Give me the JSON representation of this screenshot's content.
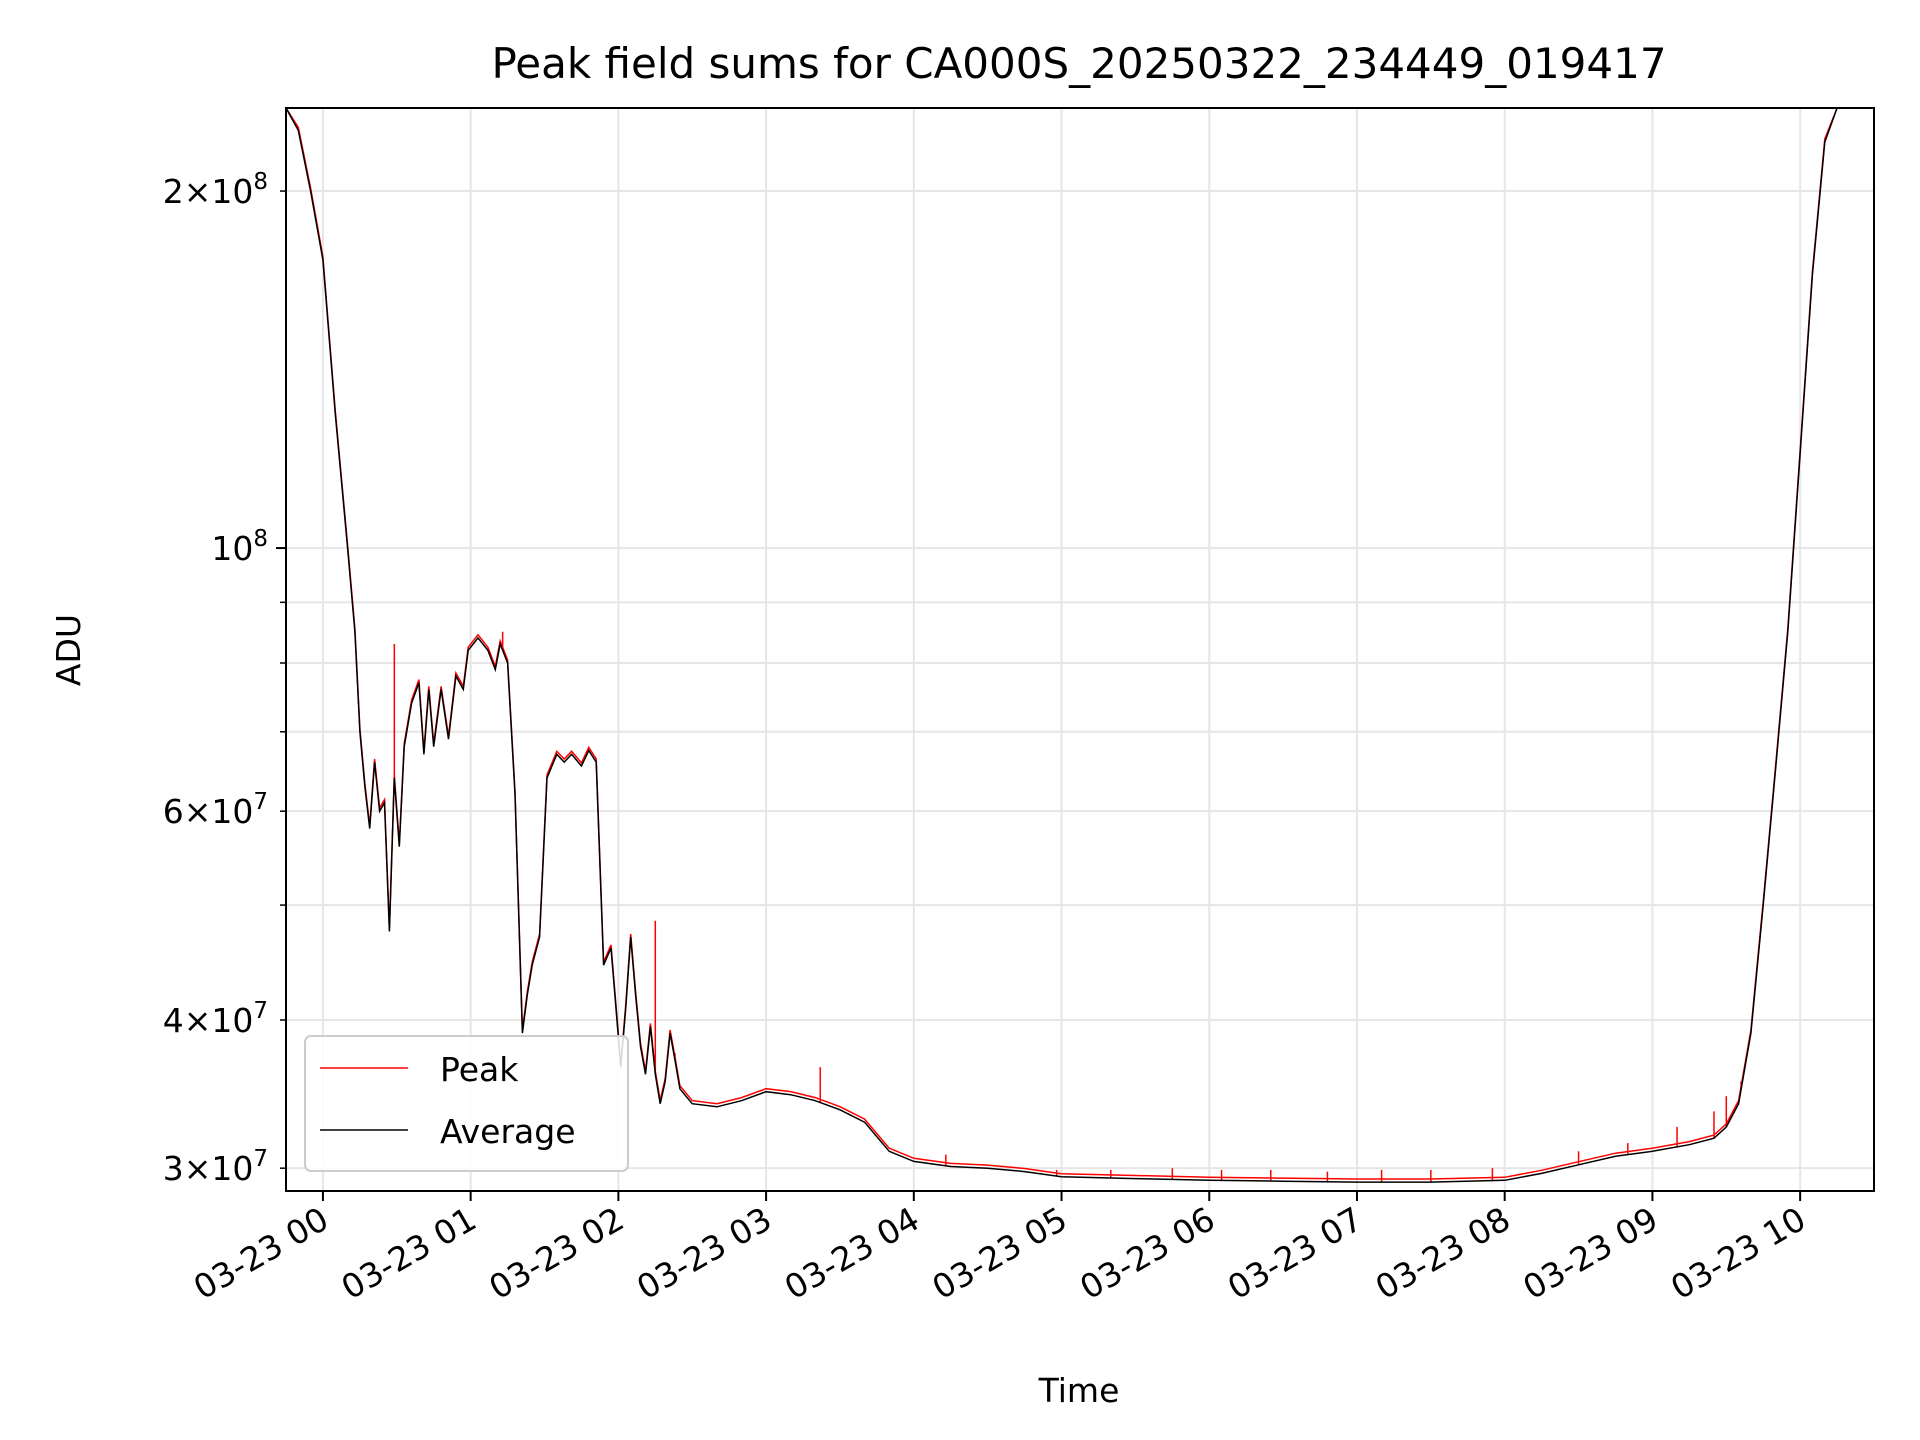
{
  "chart_data": {
    "type": "line",
    "title": "Peak field sums for CA000S_20250322_234449_019417",
    "xlabel": "Time",
    "ylabel": "ADU",
    "y_scale": "log",
    "x_range": [
      "03-22 23:45",
      "03-23 10:30"
    ],
    "ylim": [
      28700000,
      235000000
    ],
    "grid": true,
    "legend_position": "lower left",
    "x_ticks": [
      "03-23 00",
      "03-23 01",
      "03-23 02",
      "03-23 03",
      "03-23 04",
      "03-23 05",
      "03-23 06",
      "03-23 07",
      "03-23 08",
      "03-23 09",
      "03-23 10"
    ],
    "y_ticks_major": [
      {
        "value": 100000000,
        "base": "10",
        "exp": "8"
      }
    ],
    "y_ticks_labeled_minor": [
      {
        "value": 30000000,
        "mant": "3",
        "base": "10",
        "exp": "7"
      },
      {
        "value": 40000000,
        "mant": "4",
        "base": "10",
        "exp": "7"
      },
      {
        "value": 60000000,
        "mant": "6",
        "base": "10",
        "exp": "7"
      },
      {
        "value": 200000000,
        "mant": "2",
        "base": "10",
        "exp": "8"
      }
    ],
    "y_ticks_unlabeled_minor": [
      50000000,
      70000000,
      80000000,
      90000000
    ],
    "series": [
      {
        "name": "Average",
        "color": "#000000",
        "points": [
          [
            "03-22 23:45",
            235000000
          ],
          [
            "03-22 23:50",
            225000000
          ],
          [
            "03-22 23:55",
            200000000
          ],
          [
            "03-23 00:00",
            175000000
          ],
          [
            "03-23 00:05",
            130000000
          ],
          [
            "03-23 00:10",
            100000000
          ],
          [
            "03-23 00:13",
            85000000
          ],
          [
            "03-23 00:15",
            70000000
          ],
          [
            "03-23 00:17",
            63000000
          ],
          [
            "03-23 00:19",
            58000000
          ],
          [
            "03-23 00:21",
            66000000
          ],
          [
            "03-23 00:23",
            60000000
          ],
          [
            "03-23 00:25",
            61000000
          ],
          [
            "03-23 00:27",
            47500000
          ],
          [
            "03-23 00:29",
            64000000
          ],
          [
            "03-23 00:31",
            56000000
          ],
          [
            "03-23 00:33",
            68000000
          ],
          [
            "03-23 00:36",
            74000000
          ],
          [
            "03-23 00:39",
            77000000
          ],
          [
            "03-23 00:41",
            67000000
          ],
          [
            "03-23 00:43",
            76000000
          ],
          [
            "03-23 00:45",
            68000000
          ],
          [
            "03-23 00:48",
            76000000
          ],
          [
            "03-23 00:51",
            69000000
          ],
          [
            "03-23 00:54",
            78000000
          ],
          [
            "03-23 00:57",
            76000000
          ],
          [
            "03-23 00:59",
            82000000
          ],
          [
            "03-23 01:03",
            84000000
          ],
          [
            "03-23 01:07",
            82000000
          ],
          [
            "03-23 01:10",
            79000000
          ],
          [
            "03-23 01:12",
            83000000
          ],
          [
            "03-23 01:15",
            80000000
          ],
          [
            "03-23 01:18",
            62000000
          ],
          [
            "03-23 01:21",
            39000000
          ],
          [
            "03-23 01:23",
            42000000
          ],
          [
            "03-23 01:25",
            44500000
          ],
          [
            "03-23 01:28",
            47000000
          ],
          [
            "03-23 01:31",
            64000000
          ],
          [
            "03-23 01:35",
            67000000
          ],
          [
            "03-23 01:38",
            66000000
          ],
          [
            "03-23 01:41",
            67000000
          ],
          [
            "03-23 01:45",
            65500000
          ],
          [
            "03-23 01:48",
            67500000
          ],
          [
            "03-23 01:51",
            66000000
          ],
          [
            "03-23 01:54",
            44500000
          ],
          [
            "03-23 01:57",
            46000000
          ],
          [
            "03-23 01:59",
            41000000
          ],
          [
            "03-23 02:01",
            36500000
          ],
          [
            "03-23 02:03",
            41000000
          ],
          [
            "03-23 02:05",
            47000000
          ],
          [
            "03-23 02:07",
            42000000
          ],
          [
            "03-23 02:09",
            38000000
          ],
          [
            "03-23 02:11",
            36000000
          ],
          [
            "03-23 02:13",
            39500000
          ],
          [
            "03-23 02:15",
            36000000
          ],
          [
            "03-23 02:17",
            34000000
          ],
          [
            "03-23 02:19",
            35500000
          ],
          [
            "03-23 02:21",
            39000000
          ],
          [
            "03-23 02:23",
            37000000
          ],
          [
            "03-23 02:25",
            35000000
          ],
          [
            "03-23 02:30",
            34000000
          ],
          [
            "03-23 02:40",
            33800000
          ],
          [
            "03-23 02:50",
            34200000
          ],
          [
            "03-23 03:00",
            34800000
          ],
          [
            "03-23 03:10",
            34600000
          ],
          [
            "03-23 03:20",
            34200000
          ],
          [
            "03-23 03:30",
            33600000
          ],
          [
            "03-23 03:40",
            32800000
          ],
          [
            "03-23 03:50",
            31000000
          ],
          [
            "03-23 04:00",
            30400000
          ],
          [
            "03-23 04:15",
            30100000
          ],
          [
            "03-23 04:30",
            30000000
          ],
          [
            "03-23 04:45",
            29800000
          ],
          [
            "03-23 05:00",
            29500000
          ],
          [
            "03-23 05:30",
            29400000
          ],
          [
            "03-23 06:00",
            29300000
          ],
          [
            "03-23 06:30",
            29250000
          ],
          [
            "03-23 07:00",
            29200000
          ],
          [
            "03-23 07:30",
            29200000
          ],
          [
            "03-23 08:00",
            29300000
          ],
          [
            "03-23 08:15",
            29700000
          ],
          [
            "03-23 08:30",
            30200000
          ],
          [
            "03-23 08:45",
            30700000
          ],
          [
            "03-23 09:00",
            31000000
          ],
          [
            "03-23 09:15",
            31400000
          ],
          [
            "03-23 09:25",
            31800000
          ],
          [
            "03-23 09:30",
            32500000
          ],
          [
            "03-23 09:35",
            34000000
          ],
          [
            "03-23 09:40",
            39000000
          ],
          [
            "03-23 09:45",
            50000000
          ],
          [
            "03-23 09:50",
            65000000
          ],
          [
            "03-23 09:55",
            85000000
          ],
          [
            "03-23 10:00",
            120000000
          ],
          [
            "03-23 10:05",
            170000000
          ],
          [
            "03-23 10:10",
            220000000
          ],
          [
            "03-23 10:15",
            235000000
          ]
        ]
      },
      {
        "name": "Peak",
        "color": "#ff0000",
        "spikes": [
          [
            "03-23 00:29",
            83000000
          ],
          [
            "03-23 01:13",
            85000000
          ],
          [
            "03-23 02:15",
            48500000
          ],
          [
            "03-23 02:23",
            37500000
          ],
          [
            "03-23 03:22",
            36500000
          ],
          [
            "03-23 04:13",
            30800000
          ],
          [
            "03-23 04:58",
            29900000
          ],
          [
            "03-23 05:20",
            29900000
          ],
          [
            "03-23 05:45",
            30000000
          ],
          [
            "03-23 06:05",
            29900000
          ],
          [
            "03-23 06:25",
            29900000
          ],
          [
            "03-23 06:48",
            29800000
          ],
          [
            "03-23 07:10",
            29900000
          ],
          [
            "03-23 07:30",
            29900000
          ],
          [
            "03-23 07:55",
            30000000
          ],
          [
            "03-23 08:30",
            31000000
          ],
          [
            "03-23 08:50",
            31500000
          ],
          [
            "03-23 09:10",
            32500000
          ],
          [
            "03-23 09:25",
            33500000
          ],
          [
            "03-23 09:30",
            34500000
          ],
          [
            "03-23 09:36",
            35500000
          ]
        ]
      }
    ]
  }
}
